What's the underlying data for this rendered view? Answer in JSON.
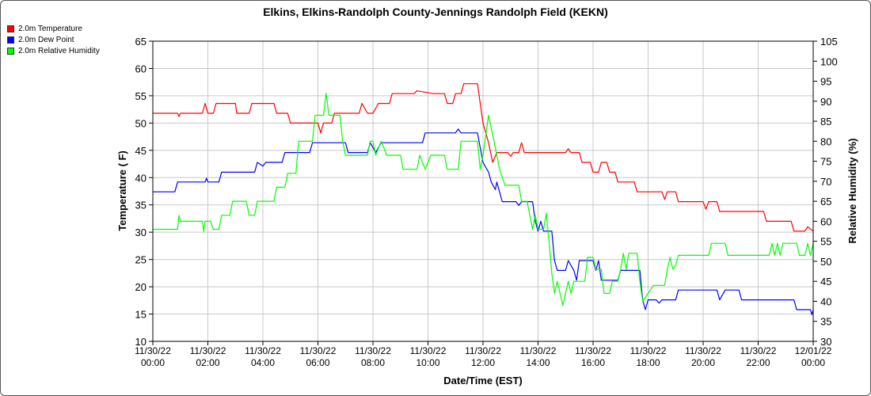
{
  "chart_data": {
    "type": "line",
    "title": "Elkins, Elkins-Randolph County-Jennings Randolph Field (KEKN)",
    "xlabel": "Date/Time (EST)",
    "ylabel": "Temperature ( F)",
    "y2label": "Relative Humidity (%)",
    "ylim": [
      10,
      65
    ],
    "y2lim": [
      30,
      105
    ],
    "xlim_hours": [
      0,
      24
    ],
    "grid": true,
    "legend_position": "top-left",
    "y_ticks": [
      "10",
      "15",
      "20",
      "25",
      "30",
      "35",
      "40",
      "45",
      "50",
      "55",
      "60",
      "65"
    ],
    "y2_ticks": [
      "30",
      "35",
      "40",
      "45",
      "50",
      "55",
      "60",
      "65",
      "70",
      "75",
      "80",
      "85",
      "90",
      "95",
      "100",
      "105"
    ],
    "x_ticks": [
      {
        "date": "11/30/22",
        "time": "00:00"
      },
      {
        "date": "11/30/22",
        "time": "02:00"
      },
      {
        "date": "11/30/22",
        "time": "04:00"
      },
      {
        "date": "11/30/22",
        "time": "06:00"
      },
      {
        "date": "11/30/22",
        "time": "08:00"
      },
      {
        "date": "11/30/22",
        "time": "10:00"
      },
      {
        "date": "11/30/22",
        "time": "12:00"
      },
      {
        "date": "11/30/22",
        "time": "14:00"
      },
      {
        "date": "11/30/22",
        "time": "16:00"
      },
      {
        "date": "11/30/22",
        "time": "18:00"
      },
      {
        "date": "11/30/22",
        "time": "20:00"
      },
      {
        "date": "11/30/22",
        "time": "22:00"
      },
      {
        "date": "12/01/22",
        "time": "00:00"
      }
    ],
    "series": [
      {
        "name": "2.0m Temperature",
        "color": "#ff0000",
        "axis": "left",
        "points": [
          [
            0,
            51.8
          ],
          [
            0.9,
            51.8
          ],
          [
            0.95,
            51.2
          ],
          [
            1.0,
            51.8
          ],
          [
            1.8,
            51.8
          ],
          [
            1.9,
            53.6
          ],
          [
            2.0,
            51.8
          ],
          [
            2.2,
            51.8
          ],
          [
            2.3,
            53.6
          ],
          [
            3.0,
            53.6
          ],
          [
            3.05,
            51.8
          ],
          [
            3.5,
            51.8
          ],
          [
            3.6,
            53.6
          ],
          [
            4.4,
            53.6
          ],
          [
            4.5,
            51.8
          ],
          [
            4.9,
            51.8
          ],
          [
            5.0,
            50.0
          ],
          [
            6.0,
            50.0
          ],
          [
            6.1,
            48.2
          ],
          [
            6.2,
            50.0
          ],
          [
            6.5,
            50.0
          ],
          [
            6.6,
            51.8
          ],
          [
            7.5,
            51.8
          ],
          [
            7.6,
            53.6
          ],
          [
            7.8,
            51.8
          ],
          [
            8.0,
            51.8
          ],
          [
            8.2,
            53.6
          ],
          [
            8.6,
            53.6
          ],
          [
            8.7,
            55.4
          ],
          [
            9.5,
            55.4
          ],
          [
            9.6,
            55.9
          ],
          [
            10.2,
            55.4
          ],
          [
            10.6,
            55.4
          ],
          [
            10.7,
            53.6
          ],
          [
            10.9,
            53.6
          ],
          [
            11.0,
            55.4
          ],
          [
            11.2,
            55.4
          ],
          [
            11.3,
            57.2
          ],
          [
            11.8,
            57.2
          ],
          [
            11.9,
            53.6
          ],
          [
            12.0,
            50.0
          ],
          [
            12.2,
            46.4
          ],
          [
            12.35,
            42.8
          ],
          [
            12.5,
            44.6
          ],
          [
            12.9,
            44.6
          ],
          [
            13.0,
            43.9
          ],
          [
            13.1,
            44.6
          ],
          [
            13.3,
            44.6
          ],
          [
            13.4,
            46.4
          ],
          [
            13.5,
            44.6
          ],
          [
            15.0,
            44.6
          ],
          [
            15.1,
            45.3
          ],
          [
            15.2,
            44.6
          ],
          [
            15.5,
            44.6
          ],
          [
            15.6,
            42.8
          ],
          [
            15.9,
            42.8
          ],
          [
            16.0,
            41.0
          ],
          [
            16.2,
            41.0
          ],
          [
            16.3,
            42.8
          ],
          [
            16.5,
            42.8
          ],
          [
            16.6,
            41.0
          ],
          [
            16.8,
            41.0
          ],
          [
            16.9,
            39.2
          ],
          [
            17.5,
            39.2
          ],
          [
            17.6,
            37.4
          ],
          [
            18.5,
            37.4
          ],
          [
            18.6,
            36.0
          ],
          [
            18.7,
            37.4
          ],
          [
            19.0,
            37.4
          ],
          [
            19.1,
            35.6
          ],
          [
            20.0,
            35.6
          ],
          [
            20.1,
            34.2
          ],
          [
            20.2,
            35.6
          ],
          [
            20.5,
            35.6
          ],
          [
            20.6,
            33.8
          ],
          [
            22.2,
            33.8
          ],
          [
            22.3,
            32.0
          ],
          [
            23.2,
            32.0
          ],
          [
            23.3,
            30.2
          ],
          [
            23.7,
            30.2
          ],
          [
            23.8,
            31.0
          ],
          [
            24.0,
            30.2
          ]
        ]
      },
      {
        "name": "2.0m Dew Point",
        "color": "#0000ff",
        "axis": "left",
        "points": [
          [
            0,
            37.4
          ],
          [
            0.8,
            37.4
          ],
          [
            0.9,
            39.2
          ],
          [
            1.9,
            39.2
          ],
          [
            1.95,
            39.9
          ],
          [
            2.0,
            39.2
          ],
          [
            2.4,
            39.2
          ],
          [
            2.5,
            41.0
          ],
          [
            3.7,
            41.0
          ],
          [
            3.8,
            42.8
          ],
          [
            4.0,
            42.1
          ],
          [
            4.1,
            42.8
          ],
          [
            4.7,
            42.8
          ],
          [
            4.8,
            44.6
          ],
          [
            5.7,
            44.6
          ],
          [
            5.8,
            46.4
          ],
          [
            7.0,
            46.4
          ],
          [
            7.1,
            44.6
          ],
          [
            7.8,
            44.6
          ],
          [
            7.9,
            46.4
          ],
          [
            8.1,
            44.6
          ],
          [
            8.3,
            46.4
          ],
          [
            9.8,
            46.4
          ],
          [
            9.9,
            48.2
          ],
          [
            11.0,
            48.2
          ],
          [
            11.1,
            48.9
          ],
          [
            11.2,
            48.2
          ],
          [
            11.8,
            48.2
          ],
          [
            12.0,
            42.8
          ],
          [
            12.2,
            41.0
          ],
          [
            12.3,
            39.2
          ],
          [
            12.45,
            37.8
          ],
          [
            12.5,
            39.2
          ],
          [
            12.6,
            37.4
          ],
          [
            12.7,
            35.6
          ],
          [
            13.2,
            35.6
          ],
          [
            13.3,
            34.9
          ],
          [
            13.4,
            35.6
          ],
          [
            13.8,
            35.6
          ],
          [
            13.9,
            32.0
          ],
          [
            14.0,
            30.2
          ],
          [
            14.1,
            32.0
          ],
          [
            14.2,
            30.2
          ],
          [
            14.5,
            30.2
          ],
          [
            14.6,
            24.8
          ],
          [
            14.7,
            23.0
          ],
          [
            15.0,
            23.0
          ],
          [
            15.1,
            24.8
          ],
          [
            15.3,
            23.0
          ],
          [
            15.4,
            21.2
          ],
          [
            15.5,
            24.8
          ],
          [
            16.0,
            24.8
          ],
          [
            16.1,
            23.0
          ],
          [
            16.2,
            24.8
          ],
          [
            16.3,
            21.2
          ],
          [
            16.9,
            21.2
          ],
          [
            17.0,
            23.0
          ],
          [
            17.7,
            23.0
          ],
          [
            17.8,
            17.6
          ],
          [
            17.9,
            15.8
          ],
          [
            18.0,
            17.6
          ],
          [
            18.3,
            17.6
          ],
          [
            18.4,
            17.0
          ],
          [
            18.5,
            17.6
          ],
          [
            19.0,
            17.6
          ],
          [
            19.1,
            19.4
          ],
          [
            19.3,
            19.4
          ],
          [
            19.5,
            19.4
          ],
          [
            20.5,
            19.4
          ],
          [
            20.6,
            17.6
          ],
          [
            20.8,
            19.4
          ],
          [
            21.3,
            19.4
          ],
          [
            21.4,
            17.6
          ],
          [
            23.3,
            17.6
          ],
          [
            23.4,
            15.8
          ],
          [
            23.9,
            15.8
          ],
          [
            23.95,
            14.9
          ],
          [
            24.0,
            15.8
          ]
        ]
      },
      {
        "name": "2.0m Relative Humidity",
        "color": "#00ff00",
        "axis": "right",
        "points": [
          [
            0,
            58.0
          ],
          [
            0.9,
            58.0
          ],
          [
            0.95,
            61.5
          ],
          [
            1.0,
            60.0
          ],
          [
            1.8,
            60.0
          ],
          [
            1.85,
            57.5
          ],
          [
            1.9,
            60.0
          ],
          [
            2.1,
            60.0
          ],
          [
            2.2,
            58.0
          ],
          [
            2.4,
            58.0
          ],
          [
            2.5,
            61.5
          ],
          [
            2.8,
            61.5
          ],
          [
            2.9,
            65.0
          ],
          [
            3.4,
            65.0
          ],
          [
            3.5,
            61.5
          ],
          [
            3.7,
            61.5
          ],
          [
            3.8,
            65.0
          ],
          [
            4.4,
            65.0
          ],
          [
            4.5,
            68.5
          ],
          [
            4.8,
            68.5
          ],
          [
            4.9,
            72.0
          ],
          [
            5.2,
            72.0
          ],
          [
            5.3,
            80.0
          ],
          [
            5.8,
            80.0
          ],
          [
            5.9,
            86.5
          ],
          [
            6.2,
            86.5
          ],
          [
            6.3,
            92.0
          ],
          [
            6.4,
            86.5
          ],
          [
            6.8,
            86.5
          ],
          [
            6.9,
            80.0
          ],
          [
            7.0,
            76.5
          ],
          [
            7.8,
            76.5
          ],
          [
            7.9,
            80.0
          ],
          [
            8.0,
            80.0
          ],
          [
            8.1,
            76.5
          ],
          [
            8.3,
            80.0
          ],
          [
            8.5,
            76.5
          ],
          [
            9.0,
            76.5
          ],
          [
            9.1,
            73.0
          ],
          [
            9.6,
            73.0
          ],
          [
            9.7,
            76.5
          ],
          [
            9.9,
            73.0
          ],
          [
            10.1,
            76.5
          ],
          [
            10.6,
            76.5
          ],
          [
            10.7,
            73.0
          ],
          [
            11.1,
            73.0
          ],
          [
            11.2,
            80.0
          ],
          [
            11.8,
            80.0
          ],
          [
            11.9,
            73.0
          ],
          [
            12.0,
            76.5
          ],
          [
            12.2,
            86.5
          ],
          [
            12.4,
            80.0
          ],
          [
            12.6,
            73.0
          ],
          [
            12.8,
            69.0
          ],
          [
            13.3,
            69.0
          ],
          [
            13.4,
            65.0
          ],
          [
            13.6,
            65.0
          ],
          [
            13.7,
            61.5
          ],
          [
            13.8,
            58.0
          ],
          [
            13.9,
            61.5
          ],
          [
            14.0,
            58.0
          ],
          [
            14.2,
            58.0
          ],
          [
            14.3,
            62.0
          ],
          [
            14.4,
            55.0
          ],
          [
            14.5,
            47.0
          ],
          [
            14.6,
            42.0
          ],
          [
            14.7,
            45.0
          ],
          [
            14.8,
            42.0
          ],
          [
            14.9,
            39.0
          ],
          [
            15.0,
            42.0
          ],
          [
            15.1,
            45.0
          ],
          [
            15.2,
            42.0
          ],
          [
            15.3,
            45.0
          ],
          [
            15.7,
            45.0
          ],
          [
            15.8,
            51.0
          ],
          [
            16.0,
            51.0
          ],
          [
            16.1,
            48.0
          ],
          [
            16.3,
            48.0
          ],
          [
            16.4,
            42.0
          ],
          [
            16.6,
            42.0
          ],
          [
            16.7,
            45.0
          ],
          [
            16.9,
            45.0
          ],
          [
            17.0,
            48.0
          ],
          [
            17.1,
            52.0
          ],
          [
            17.2,
            48.0
          ],
          [
            17.3,
            52.0
          ],
          [
            17.6,
            52.0
          ],
          [
            17.7,
            45.0
          ],
          [
            17.8,
            40.0
          ],
          [
            18.0,
            42.0
          ],
          [
            18.2,
            44.0
          ],
          [
            18.6,
            44.0
          ],
          [
            18.7,
            48.0
          ],
          [
            18.8,
            51.0
          ],
          [
            18.9,
            48.0
          ],
          [
            19.0,
            49.0
          ],
          [
            19.1,
            51.5
          ],
          [
            20.2,
            51.5
          ],
          [
            20.3,
            54.5
          ],
          [
            20.8,
            54.5
          ],
          [
            20.9,
            51.5
          ],
          [
            22.4,
            51.5
          ],
          [
            22.5,
            54.5
          ],
          [
            22.6,
            51.5
          ],
          [
            22.7,
            54.5
          ],
          [
            22.8,
            51.5
          ],
          [
            22.9,
            54.5
          ],
          [
            23.4,
            54.5
          ],
          [
            23.5,
            51.5
          ],
          [
            23.7,
            51.5
          ],
          [
            23.8,
            54.5
          ],
          [
            23.9,
            51.5
          ],
          [
            24.0,
            54.5
          ]
        ]
      }
    ]
  }
}
